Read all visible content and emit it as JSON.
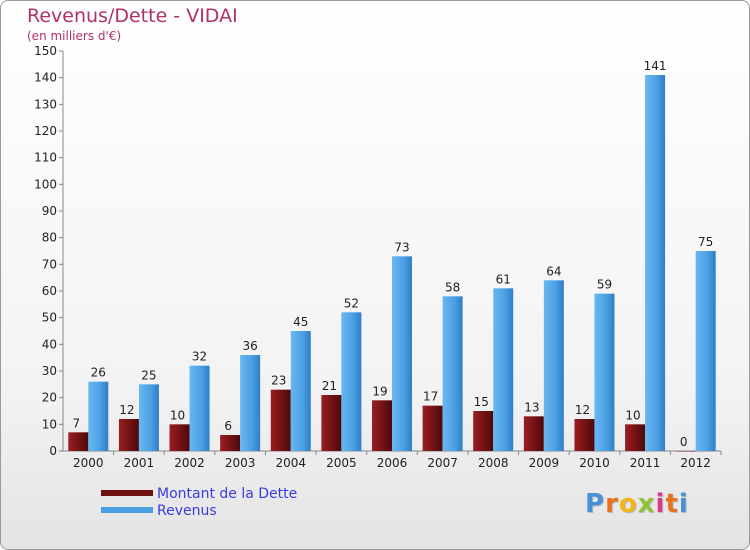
{
  "title": "Revenus/Dette - VIDAI",
  "subtitle": "(en milliers d'€)",
  "colors": {
    "title": "#b0306a",
    "dette": "#7a1214",
    "revenus": "#4a9fe3",
    "legend_text": "#3a3ae0",
    "axis": "#888888"
  },
  "chart_data": {
    "type": "bar",
    "categories": [
      "2000",
      "2001",
      "2002",
      "2003",
      "2004",
      "2005",
      "2006",
      "2007",
      "2008",
      "2009",
      "2010",
      "2011",
      "2012"
    ],
    "series": [
      {
        "name": "Montant de la Dette",
        "values": [
          7,
          12,
          10,
          6,
          23,
          21,
          19,
          17,
          15,
          13,
          12,
          10,
          0
        ]
      },
      {
        "name": "Revenus",
        "values": [
          26,
          25,
          32,
          36,
          45,
          52,
          73,
          58,
          61,
          64,
          59,
          141,
          75
        ]
      }
    ],
    "title": "Revenus/Dette - VIDAI",
    "subtitle": "(en milliers d'€)",
    "ylim": [
      0,
      150
    ],
    "yticks": [
      0,
      10,
      20,
      30,
      40,
      50,
      60,
      70,
      80,
      90,
      100,
      110,
      120,
      130,
      140,
      150
    ],
    "grid": false,
    "legend_position": "bottom-left",
    "data_labels": true
  },
  "legend": {
    "items": [
      {
        "label": "Montant de la Dette",
        "color": "#7a1214"
      },
      {
        "label": "Revenus",
        "color": "#4a9fe3"
      }
    ]
  },
  "logo": {
    "letters": [
      "P",
      "r",
      "o",
      "x",
      "i",
      "t",
      "i"
    ],
    "letter_colors": [
      "#4a90d9",
      "#e8731f",
      "#f2b51a",
      "#8fc23a",
      "#d93a8a",
      "#e8731f",
      "#4a90d9"
    ]
  }
}
